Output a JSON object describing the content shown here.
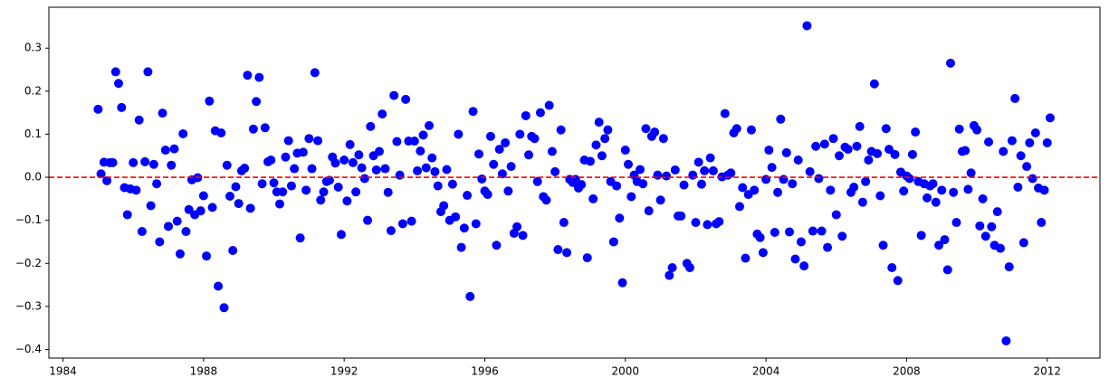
{
  "chart_data": {
    "type": "scatter",
    "color": "#0000ff",
    "x": [
      1985,
      1985.083,
      1985.167,
      1985.25,
      1985.333,
      1985.417,
      1985.5,
      1985.583,
      1985.667,
      1985.75,
      1985.833,
      1985.917,
      1986,
      1986.083,
      1986.167,
      1986.25,
      1986.333,
      1986.417,
      1986.5,
      1986.583,
      1986.667,
      1986.75,
      1986.833,
      1986.917,
      1987,
      1987.083,
      1987.167,
      1987.25,
      1987.333,
      1987.417,
      1987.5,
      1987.583,
      1987.667,
      1987.75,
      1987.833,
      1987.917,
      1988,
      1988.083,
      1988.167,
      1988.25,
      1988.333,
      1988.417,
      1988.5,
      1988.583,
      1988.667,
      1988.75,
      1988.833,
      1988.917,
      1989,
      1989.083,
      1989.167,
      1989.25,
      1989.333,
      1989.417,
      1989.5,
      1989.583,
      1989.667,
      1989.75,
      1989.833,
      1989.917,
      1990,
      1990.083,
      1990.167,
      1990.25,
      1990.333,
      1990.417,
      1990.5,
      1990.583,
      1990.667,
      1990.75,
      1990.833,
      1990.917,
      1991,
      1991.083,
      1991.167,
      1991.25,
      1991.333,
      1991.417,
      1991.5,
      1991.583,
      1991.667,
      1991.75,
      1991.833,
      1991.917,
      1992,
      1992.083,
      1992.167,
      1992.25,
      1992.333,
      1992.417,
      1992.5,
      1992.583,
      1992.667,
      1992.75,
      1992.833,
      1992.917,
      1993,
      1993.083,
      1993.167,
      1993.25,
      1993.333,
      1993.417,
      1993.5,
      1993.583,
      1993.667,
      1993.75,
      1993.833,
      1993.917,
      1994,
      1994.083,
      1994.167,
      1994.25,
      1994.333,
      1994.417,
      1994.5,
      1994.583,
      1994.667,
      1994.75,
      1994.833,
      1994.917,
      1995,
      1995.083,
      1995.167,
      1995.25,
      1995.333,
      1995.417,
      1995.5,
      1995.583,
      1995.667,
      1995.75,
      1995.833,
      1995.917,
      1996,
      1996.083,
      1996.167,
      1996.25,
      1996.333,
      1996.417,
      1996.5,
      1996.583,
      1996.667,
      1996.75,
      1996.833,
      1996.917,
      1997,
      1997.083,
      1997.167,
      1997.25,
      1997.333,
      1997.417,
      1997.5,
      1997.583,
      1997.667,
      1997.75,
      1997.833,
      1997.917,
      1998,
      1998.083,
      1998.167,
      1998.25,
      1998.333,
      1998.417,
      1998.5,
      1998.583,
      1998.667,
      1998.75,
      1998.833,
      1998.917,
      1999,
      1999.083,
      1999.167,
      1999.25,
      1999.333,
      1999.417,
      1999.5,
      1999.583,
      1999.667,
      1999.75,
      1999.833,
      1999.917,
      2000,
      2000.083,
      2000.167,
      2000.25,
      2000.333,
      2000.417,
      2000.5,
      2000.583,
      2000.667,
      2000.75,
      2000.833,
      2000.917,
      2001,
      2001.083,
      2001.167,
      2001.25,
      2001.333,
      2001.417,
      2001.5,
      2001.583,
      2001.667,
      2001.75,
      2001.833,
      2001.917,
      2002,
      2002.083,
      2002.167,
      2002.25,
      2002.333,
      2002.417,
      2002.5,
      2002.583,
      2002.667,
      2002.75,
      2002.833,
      2002.917,
      2003,
      2003.083,
      2003.167,
      2003.25,
      2003.333,
      2003.417,
      2003.5,
      2003.583,
      2003.667,
      2003.75,
      2003.833,
      2003.917,
      2004,
      2004.083,
      2004.167,
      2004.25,
      2004.333,
      2004.417,
      2004.5,
      2004.583,
      2004.667,
      2004.75,
      2004.833,
      2004.917,
      2005,
      2005.083,
      2005.167,
      2005.25,
      2005.333,
      2005.417,
      2005.5,
      2005.583,
      2005.667,
      2005.75,
      2005.833,
      2005.917,
      2006,
      2006.083,
      2006.167,
      2006.25,
      2006.333,
      2006.417,
      2006.5,
      2006.583,
      2006.667,
      2006.75,
      2006.833,
      2006.917,
      2007,
      2007.083,
      2007.167,
      2007.25,
      2007.333,
      2007.417,
      2007.5,
      2007.583,
      2007.667,
      2007.75,
      2007.833,
      2007.917,
      2008,
      2008.083,
      2008.167,
      2008.25,
      2008.333,
      2008.417,
      2008.5,
      2008.583,
      2008.667,
      2008.75,
      2008.833,
      2008.917,
      2009,
      2009.083,
      2009.167,
      2009.25,
      2009.333,
      2009.417,
      2009.5,
      2009.583,
      2009.667,
      2009.75,
      2009.833,
      2009.917,
      2010,
      2010.083,
      2010.167,
      2010.25,
      2010.333,
      2010.417,
      2010.5,
      2010.583,
      2010.667,
      2010.75,
      2010.833,
      2010.917,
      2011,
      2011.083,
      2011.167,
      2011.25,
      2011.333,
      2011.417,
      2011.5,
      2011.583,
      2011.667,
      2011.75,
      2011.833,
      2011.917,
      2012,
      2012.083
    ],
    "values": [
      0.158,
      0.008,
      0.035,
      -0.008,
      0.034,
      0.034,
      0.245,
      0.218,
      0.162,
      -0.024,
      -0.087,
      -0.027,
      0.034,
      -0.03,
      0.133,
      -0.126,
      0.036,
      0.245,
      -0.066,
      0.03,
      -0.015,
      -0.15,
      0.149,
      0.063,
      -0.114,
      0.028,
      0.066,
      -0.102,
      -0.178,
      0.101,
      -0.126,
      -0.075,
      -0.006,
      -0.087,
      -0.001,
      -0.078,
      -0.043,
      -0.183,
      0.177,
      -0.07,
      0.108,
      -0.253,
      0.103,
      -0.303,
      0.028,
      -0.044,
      -0.17,
      -0.022,
      -0.061,
      0.015,
      0.021,
      0.237,
      -0.072,
      0.112,
      0.176,
      0.232,
      -0.015,
      0.115,
      0.036,
      0.04,
      -0.013,
      -0.034,
      -0.062,
      -0.034,
      0.047,
      0.085,
      -0.02,
      0.02,
      0.056,
      -0.141,
      0.058,
      -0.03,
      0.09,
      0.02,
      0.243,
      0.085,
      -0.053,
      -0.034,
      -0.01,
      -0.007,
      0.047,
      0.033,
      -0.023,
      -0.133,
      0.04,
      -0.055,
      0.076,
      0.034,
      -0.034,
      0.052,
      0.022,
      -0.003,
      -0.1,
      0.118,
      0.05,
      0.017,
      0.06,
      0.147,
      0.02,
      -0.035,
      -0.124,
      0.19,
      0.083,
      0.005,
      -0.108,
      0.181,
      0.084,
      -0.102,
      0.084,
      0.015,
      0.061,
      0.098,
      0.022,
      0.12,
      0.045,
      0.013,
      -0.02,
      -0.08,
      -0.066,
      0.018,
      -0.1,
      -0.016,
      -0.092,
      0.1,
      -0.163,
      -0.118,
      -0.042,
      -0.277,
      0.153,
      -0.108,
      0.054,
      -0.004,
      -0.032,
      -0.04,
      0.095,
      0.03,
      -0.158,
      0.065,
      0.008,
      0.08,
      -0.032,
      0.025,
      -0.13,
      -0.115,
      0.1,
      -0.135,
      0.143,
      0.052,
      0.095,
      0.09,
      -0.01,
      0.15,
      -0.045,
      -0.053,
      0.167,
      0.06,
      0.013,
      -0.168,
      0.11,
      -0.105,
      -0.175,
      -0.005,
      -0.012,
      -0.005,
      -0.025,
      -0.017,
      0.04,
      -0.187,
      0.037,
      -0.05,
      0.075,
      0.128,
      0.05,
      0.09,
      0.11,
      -0.01,
      -0.15,
      -0.02,
      -0.095,
      -0.245,
      0.063,
      0.03,
      -0.045,
      0.005,
      -0.01,
      0.018,
      -0.015,
      0.113,
      -0.078,
      0.095,
      0.105,
      0.005,
      -0.053,
      0.09,
      0.003,
      -0.228,
      -0.21,
      0.017,
      -0.09,
      -0.09,
      -0.018,
      -0.2,
      -0.21,
      0.005,
      -0.105,
      0.035,
      -0.016,
      0.015,
      -0.11,
      0.045,
      0.015,
      -0.108,
      -0.103,
      0.001,
      0.148,
      0.005,
      0.01,
      0.103,
      0.113,
      -0.068,
      -0.024,
      -0.188,
      -0.04,
      0.11,
      -0.03,
      -0.132,
      -0.14,
      -0.175,
      -0.005,
      0.063,
      0.023,
      -0.128,
      -0.035,
      0.135,
      -0.005,
      0.057,
      -0.127,
      -0.015,
      -0.19,
      0.04,
      -0.15,
      -0.206,
      0.352,
      0.013,
      -0.125,
      0.072,
      -0.003,
      -0.125,
      0.077,
      -0.163,
      -0.03,
      0.09,
      -0.087,
      0.05,
      -0.137,
      0.07,
      0.065,
      -0.035,
      -0.023,
      0.072,
      0.118,
      -0.058,
      -0.01,
      0.04,
      0.06,
      0.217,
      0.055,
      -0.043,
      -0.158,
      0.113,
      0.065,
      -0.21,
      0.053,
      -0.24,
      0.012,
      -0.032,
      0.003,
      -0.003,
      0.053,
      0.105,
      -0.01,
      -0.135,
      -0.015,
      -0.048,
      -0.02,
      -0.015,
      -0.058,
      -0.158,
      -0.03,
      -0.145,
      -0.215,
      0.265,
      -0.035,
      -0.105,
      0.112,
      0.06,
      0.062,
      -0.028,
      0.01,
      0.12,
      0.11,
      -0.113,
      -0.05,
      -0.137,
      0.082,
      -0.115,
      -0.158,
      -0.08,
      -0.165,
      0.06,
      -0.38,
      -0.208,
      0.085,
      0.183,
      -0.023,
      0.05,
      -0.152,
      0.025,
      0.08,
      -0.003,
      0.103,
      -0.025,
      -0.105,
      -0.03,
      0.08,
      0.138
    ],
    "xlim": [
      1983.6,
      2013.5
    ],
    "xticks": [
      1984,
      1988,
      1992,
      1996,
      2000,
      2004,
      2008,
      2012
    ],
    "ylim": [
      -0.42,
      0.395
    ],
    "yticks": [
      {
        "value": -0.4,
        "label": "−0.4"
      },
      {
        "value": -0.3,
        "label": "−0.3"
      },
      {
        "value": -0.2,
        "label": "−0.2"
      },
      {
        "value": -0.1,
        "label": "−0.1"
      },
      {
        "value": 0,
        "label": "0.0"
      },
      0.1,
      0.2,
      0.3
    ],
    "hline": {
      "value": 0,
      "color": "#ff0000"
    }
  }
}
